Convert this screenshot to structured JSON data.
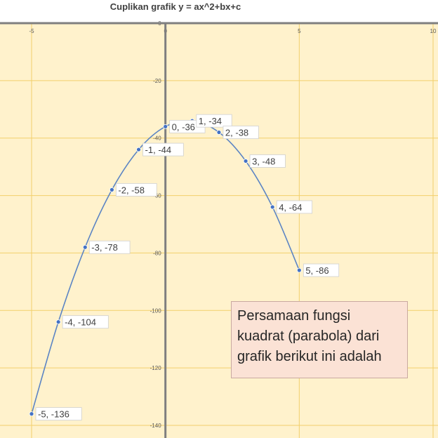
{
  "chart_data": {
    "type": "scatter",
    "title": "Cuplikan grafik y = ax^2+bx+c",
    "xlabel": "",
    "ylabel": "",
    "xlim": [
      -5,
      10
    ],
    "ylim": [
      -140,
      0
    ],
    "x_ticks": [
      "-5",
      "0",
      "5",
      "10"
    ],
    "y_ticks": [
      "0",
      "-20",
      "-40",
      "-60",
      "-80",
      "-100",
      "-120",
      "-140"
    ],
    "grid": true,
    "smooth_line": true,
    "series": [
      {
        "x": [
          -5,
          -4,
          -3,
          -2,
          -1,
          0,
          1,
          2,
          3,
          4,
          5
        ],
        "y": [
          -136,
          -104,
          -78,
          -58,
          -44,
          -36,
          -34,
          -38,
          -48,
          -64,
          -86
        ],
        "labels": [
          "-5, -136",
          "-4, -104",
          "-3, -78",
          "-2, -58",
          "-1, -44",
          "0, -36",
          "1, -34",
          "2, -38",
          "3, -48",
          "4, -64",
          "5, -86"
        ]
      }
    ],
    "colors": {
      "plot_bg": "#fff2cc",
      "grid": "#f2cf6b",
      "axis": "#7f7f7f",
      "line": "#5b84c4",
      "marker": "#4472c4"
    }
  },
  "note": {
    "lines": [
      "Persamaan fungsi",
      "kuadrat (parabola) dari",
      "grafik berikut ini adalah"
    ]
  }
}
